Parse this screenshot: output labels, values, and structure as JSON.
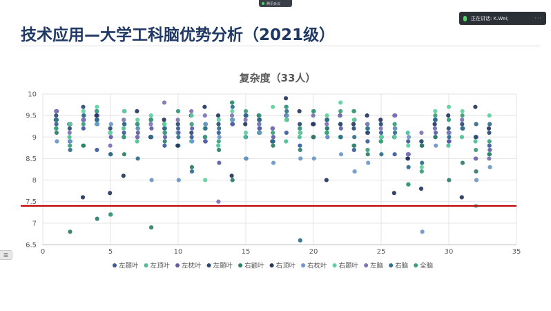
{
  "app": {
    "meeting_status": "腾讯会议",
    "speaking": "正在讲话: K.Wei;",
    "side_tab_icon": "list-icon",
    "side_tab_glyph": "☰"
  },
  "slide": {
    "title": "技术应用—大学工科脑优势分析（2021级）"
  },
  "chart_data": {
    "type": "scatter",
    "title": "复杂度（33人）",
    "xlabel": "",
    "ylabel": "",
    "xlim": [
      0,
      35
    ],
    "ylim": [
      6.5,
      10
    ],
    "xticks": [
      0,
      5,
      10,
      15,
      20,
      25,
      30,
      35
    ],
    "yticks": [
      6.5,
      7,
      7.5,
      8,
      8.5,
      9,
      9.5,
      10
    ],
    "grid": true,
    "legend_position": "bottom",
    "reference_line": {
      "y": 7.4,
      "color": "#c00000"
    },
    "series": [
      {
        "name": "左颞叶",
        "color": "#3a5a98",
        "values": [
          9.3,
          8.9,
          9.2,
          8.7,
          8.6,
          9.1,
          9.0,
          9.4,
          8.8,
          9.2,
          9.0,
          8.9,
          9.1,
          9.3,
          9.0,
          9.2,
          8.9,
          9.1,
          8.8,
          9.0,
          9.2,
          9.3,
          8.7,
          8.9,
          9.1,
          8.6,
          8.9,
          8.8,
          9.0,
          8.9,
          9.2,
          8.5,
          8.8
        ]
      },
      {
        "name": "左顶叶",
        "color": "#4cbf94",
        "values": [
          9.2,
          9.0,
          8.8,
          9.3,
          9.1,
          9.2,
          8.9,
          9.0,
          9.3,
          9.1,
          8.9,
          9.2,
          8.8,
          9.4,
          9.0,
          9.1,
          9.2,
          8.9,
          9.0,
          9.3,
          9.1,
          9.0,
          8.8,
          9.2,
          8.9,
          9.0,
          9.1,
          8.9,
          9.2,
          8.8,
          9.0,
          8.9,
          8.6
        ]
      },
      {
        "name": "左枕叶",
        "color": "#5b5ea6",
        "values": [
          9.6,
          9.3,
          9.4,
          9.5,
          9.0,
          9.3,
          9.1,
          9.2,
          9.0,
          9.1,
          9.2,
          8.9,
          8.4,
          9.3,
          9.5,
          9.2,
          9.0,
          9.4,
          9.1,
          9.3,
          9.0,
          9.2,
          9.4,
          9.1,
          9.0,
          9.5,
          8.6,
          8.8,
          9.1,
          8.9,
          9.2,
          9.0,
          8.7
        ]
      },
      {
        "name": "左颞叶",
        "color": "#2a4a73",
        "values": [
          9.5,
          9.2,
          9.7,
          9.4,
          9.2,
          9.0,
          9.3,
          9.4,
          9.2,
          9.3,
          9.1,
          9.0,
          9.3,
          9.8,
          9.5,
          9.4,
          9.2,
          9.5,
          9.3,
          9.0,
          9.4,
          9.3,
          9.2,
          9.1,
          9.3,
          9.0,
          8.5,
          8.9,
          9.4,
          9.2,
          9.3,
          9.0,
          9.1
        ]
      },
      {
        "name": "右额叶",
        "color": "#2e7d6b",
        "values": [
          9.1,
          6.8,
          8.8,
          7.1,
          7.2,
          8.6,
          9.2,
          6.9,
          8.9,
          8.8,
          8.3,
          9.3,
          8.7,
          8.0,
          8.5,
          9.1,
          8.8,
          9.4,
          8.7,
          9.0,
          9.2,
          9.0,
          8.8,
          8.6,
          9.0,
          9.2,
          7.9,
          8.8,
          9.0,
          8.0,
          8.4,
          8.2,
          8.6
        ]
      },
      {
        "name": "右顶叶",
        "color": "#24355e",
        "values": [
          9.4,
          9.3,
          7.6,
          9.5,
          7.7,
          8.1,
          9.6,
          9.0,
          9.4,
          8.8,
          9.5,
          9.7,
          9.5,
          8.1,
          9.3,
          9.5,
          8.9,
          9.9,
          9.6,
          9.3,
          8.0,
          9.5,
          9.3,
          9.5,
          9.4,
          7.7,
          8.5,
          7.8,
          9.3,
          9.5,
          7.6,
          9.7,
          9.2
        ]
      },
      {
        "name": "右枕叶",
        "color": "#6b96c9",
        "values": [
          8.9,
          8.9,
          9.5,
          9.3,
          9.3,
          9.6,
          9.2,
          8.0,
          9.1,
          8.0,
          8.9,
          9.3,
          9.0,
          9.4,
          8.5,
          9.1,
          8.4,
          9.5,
          8.5,
          8.5,
          9.0,
          8.6,
          8.2,
          8.4,
          9.0,
          9.2,
          9.0,
          6.8,
          8.8,
          9.1,
          9.2,
          8.0,
          8.3
        ]
      },
      {
        "name": "右颞叶",
        "color": "#5fcf9e",
        "values": [
          9.4,
          9.3,
          9.6,
          9.7,
          9.1,
          9.6,
          9.4,
          9.5,
          9.3,
          9.6,
          9.5,
          8.0,
          9.4,
          9.6,
          9.1,
          9.3,
          9.7,
          9.4,
          9.1,
          9.6,
          9.5,
          9.8,
          9.4,
          9.3,
          9.0,
          9.0,
          8.8,
          8.3,
          9.6,
          9.7,
          9.6,
          7.4,
          9.5
        ]
      },
      {
        "name": "左脑",
        "color": "#7d72b5",
        "values": [
          9.6,
          9.1,
          9.4,
          9.6,
          8.8,
          9.4,
          9.0,
          9.3,
          9.8,
          9.4,
          9.6,
          9.5,
          7.5,
          9.5,
          9.4,
          9.3,
          9.2,
          9.7,
          9.2,
          9.5,
          9.3,
          9.5,
          9.6,
          9.3,
          9.2,
          9.5,
          8.6,
          9.1,
          9.2,
          9.1,
          9.4,
          8.5,
          8.5
        ]
      },
      {
        "name": "右脑",
        "color": "#2f6d8c",
        "values": [
          9.4,
          8.7,
          9.5,
          9.4,
          8.6,
          9.3,
          8.5,
          9.0,
          9.2,
          9.0,
          8.2,
          9.2,
          9.2,
          9.7,
          9.5,
          9.4,
          8.9,
          9.6,
          6.6,
          9.6,
          9.4,
          9.0,
          9.0,
          9.2,
          8.6,
          9.1,
          8.3,
          8.4,
          9.4,
          9.0,
          9.2,
          9.3,
          9.3
        ]
      },
      {
        "name": "全脑",
        "color": "#3a9c7a",
        "values": [
          9.2,
          8.8,
          9.3,
          9.6,
          7.2,
          9.0,
          9.3,
          9.4,
          9.1,
          9.6,
          9.3,
          9.0,
          8.9,
          9.8,
          9.6,
          9.5,
          9.1,
          9.7,
          9.2,
          9.6,
          9.1,
          9.6,
          9.6,
          8.7,
          8.9,
          9.3,
          7.9,
          8.2,
          9.5,
          9.4,
          9.5,
          8.7,
          8.9
        ]
      }
    ]
  }
}
